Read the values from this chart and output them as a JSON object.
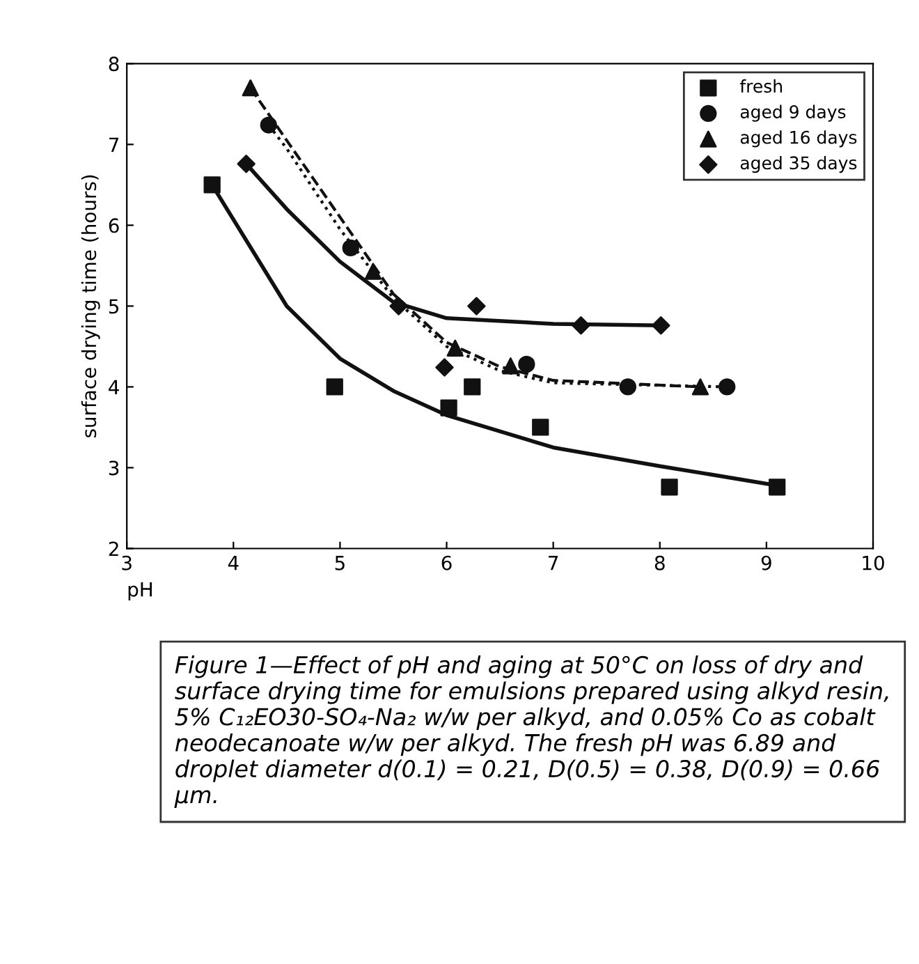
{
  "chart_data": {
    "type": "scatter",
    "xlabel": "pH",
    "ylabel": "surface drying time (hours)",
    "xlim": [
      3,
      10
    ],
    "ylim": [
      2,
      8
    ],
    "xticks": [
      3,
      4,
      5,
      6,
      7,
      8,
      9,
      10
    ],
    "yticks": [
      2,
      3,
      4,
      5,
      6,
      7,
      8
    ],
    "grid": false,
    "legend": "top right",
    "series": [
      {
        "name": "fresh",
        "color": "#111111",
        "marker": "square",
        "x": [
          3.8,
          4.95,
          6.02,
          6.24,
          6.88,
          8.09,
          9.1
        ],
        "values": [
          6.5,
          4.0,
          3.74,
          4.0,
          3.5,
          2.76,
          2.76
        ]
      },
      {
        "name": "aged 9 days",
        "color": "#111111",
        "marker": "circle",
        "x": [
          4.33,
          5.1,
          5.57,
          6.75,
          7.7,
          8.63
        ],
        "values": [
          7.24,
          5.72,
          null,
          4.28,
          4.0,
          4.0
        ]
      },
      {
        "name": "aged 16 days",
        "color": "#111111",
        "marker": "triangle",
        "x": [
          4.16,
          5.31,
          5.55,
          6.08,
          6.6,
          8.38
        ],
        "values": [
          7.7,
          5.43,
          null,
          4.48,
          4.26,
          4.0
        ]
      },
      {
        "name": "aged 35 days",
        "color": "#111111",
        "marker": "diamond",
        "x": [
          4.12,
          5.55,
          5.98,
          6.28,
          7.26,
          8.01
        ],
        "values": [
          6.76,
          5.0,
          4.24,
          5.0,
          4.76,
          4.76
        ]
      },
      {
        "type": "line",
        "color": "#111111",
        "line_style": "solid",
        "x": [
          3.8,
          4.5,
          5,
          5.5,
          6,
          7,
          8,
          9.1
        ],
        "values": [
          6.5,
          5.0,
          4.35,
          3.95,
          3.65,
          3.25,
          3.02,
          2.78
        ]
      },
      {
        "type": "line",
        "color": "#111111",
        "line_style": "dotted",
        "x": [
          4.33,
          4.5,
          5,
          5.5,
          6,
          6.5,
          7,
          8.63
        ],
        "values": [
          7.24,
          6.95,
          5.95,
          5.1,
          4.5,
          4.2,
          4.05,
          4.0
        ]
      },
      {
        "type": "line",
        "color": "#111111",
        "line_style": "dashed",
        "x": [
          4.16,
          4.5,
          5,
          5.5,
          6,
          6.5,
          7,
          8.38
        ],
        "values": [
          7.7,
          7.05,
          6.1,
          5.15,
          4.55,
          4.25,
          4.08,
          4.0
        ]
      },
      {
        "type": "line",
        "color": "#111111",
        "line_style": "solid",
        "x": [
          4.12,
          4.5,
          5,
          5.5,
          6,
          7,
          8.01
        ],
        "values": [
          6.76,
          6.2,
          5.55,
          5.05,
          4.85,
          4.78,
          4.76
        ]
      }
    ],
    "annotations": [
      "Figure 1—Effect of pH and aging at 50°C on loss of dry and surface drying time for emulsions prepared using alkyd resin, 5% C₁₂EO30-SO₄-Na₂ w/w per alkyd, and 0.05% Co as cobalt neodecanoate w/w per alkyd. The fresh pH was 6.89 and droplet diameter d(0.1) = 0.21, D(0.5) = 0.38, D(0.9) = 0.66 μm."
    ]
  }
}
